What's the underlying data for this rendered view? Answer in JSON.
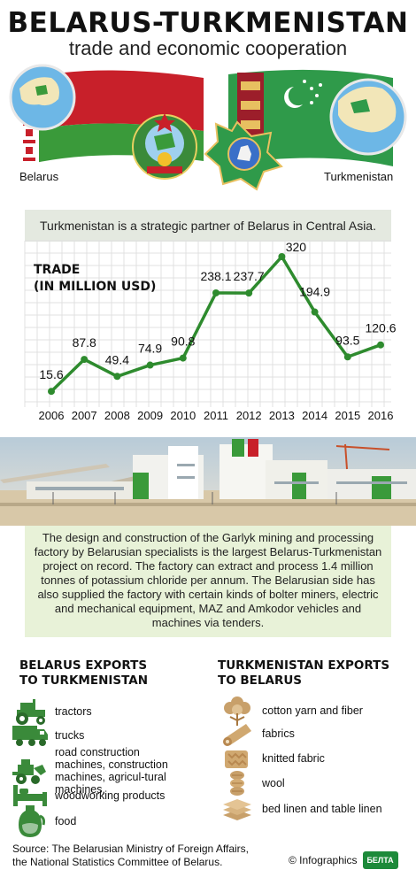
{
  "header": {
    "title": "BELARUS-TURKMENISTAN",
    "subtitle": "trade and economic cooperation"
  },
  "flags": {
    "left_label": "Belarus",
    "right_label": "Turkmenistan"
  },
  "partner_note": "Turkmenistan is a strategic partner of Belarus in Central Asia.",
  "chart_data": {
    "type": "line",
    "title": "TRADE (IN MILLION USD)",
    "title_lines": [
      "TRADE",
      "(IN MILLION USD)"
    ],
    "x": [
      "2006",
      "2007",
      "2008",
      "2009",
      "2010",
      "2011",
      "2012",
      "2013",
      "2014",
      "2015",
      "2016"
    ],
    "values": [
      15.6,
      87.8,
      49.4,
      74.9,
      90.8,
      238.1,
      237.7,
      320,
      194.9,
      93.5,
      120.6
    ],
    "labels": [
      "15.6",
      "87.8",
      "49.4",
      "74.9",
      "90.8",
      "238.1",
      "237.7",
      "320",
      "194.9",
      "93.5",
      "120.6"
    ],
    "ylim": [
      0,
      340
    ],
    "grid": true,
    "colors": {
      "line": "#2e8b2e",
      "marker": "#2e8b2e",
      "grid": "#e0e0e0"
    }
  },
  "description": "The design and construction of the Garlyk mining and processing factory by Belarusian specialists is the largest Belarus-Turkmenistan project on record. The factory can extract and process 1.4 million tonnes of potassium chloride per annum. The Belarusian side has also supplied the factory with certain kinds of bolter miners, electric and mechanical equipment, MAZ and Amkodor vehicles and machines via tenders.",
  "belarus_exports": {
    "title_line1": "BELARUS EXPORTS",
    "title_line2": "TO TURKMENISTAN",
    "items": [
      {
        "label": "tractors",
        "icon": "tractor-icon"
      },
      {
        "label": "trucks",
        "icon": "truck-icon"
      },
      {
        "label": "road construction machines, construction machines, agricul-tural machines,",
        "icon": "construction-machine-icon"
      },
      {
        "label": "woodworking products",
        "icon": "bed-icon"
      },
      {
        "label": "food",
        "icon": "jug-icon"
      }
    ]
  },
  "turkmenistan_exports": {
    "title_line1": "TURKMENISTAN EXPORTS",
    "title_line2": "TO BELARUS",
    "items": [
      {
        "label": "cotton yarn and fiber",
        "icon": "cotton-icon"
      },
      {
        "label": "fabrics",
        "icon": "fabric-roll-icon"
      },
      {
        "label": "knitted fabric",
        "icon": "knitted-fabric-icon"
      },
      {
        "label": "wool",
        "icon": "wool-skeins-icon"
      },
      {
        "label": "bed linen and table linen",
        "icon": "linen-stack-icon"
      }
    ]
  },
  "footer": {
    "source_line1": "Source: The Belarusian Ministry of Foreign Affairs,",
    "source_line2": "the National Statistics Committee of Belarus.",
    "credit": "© Infographics",
    "logo": "БЕЛТА"
  },
  "colors": {
    "green": "#2e8b2e",
    "belarus_red": "#c8202a",
    "belarus_green": "#3a9a3a",
    "turkmen_green": "#2f9a4a",
    "note_bg": "#e4e9e0",
    "desc_bg": "#e8f2d8"
  }
}
